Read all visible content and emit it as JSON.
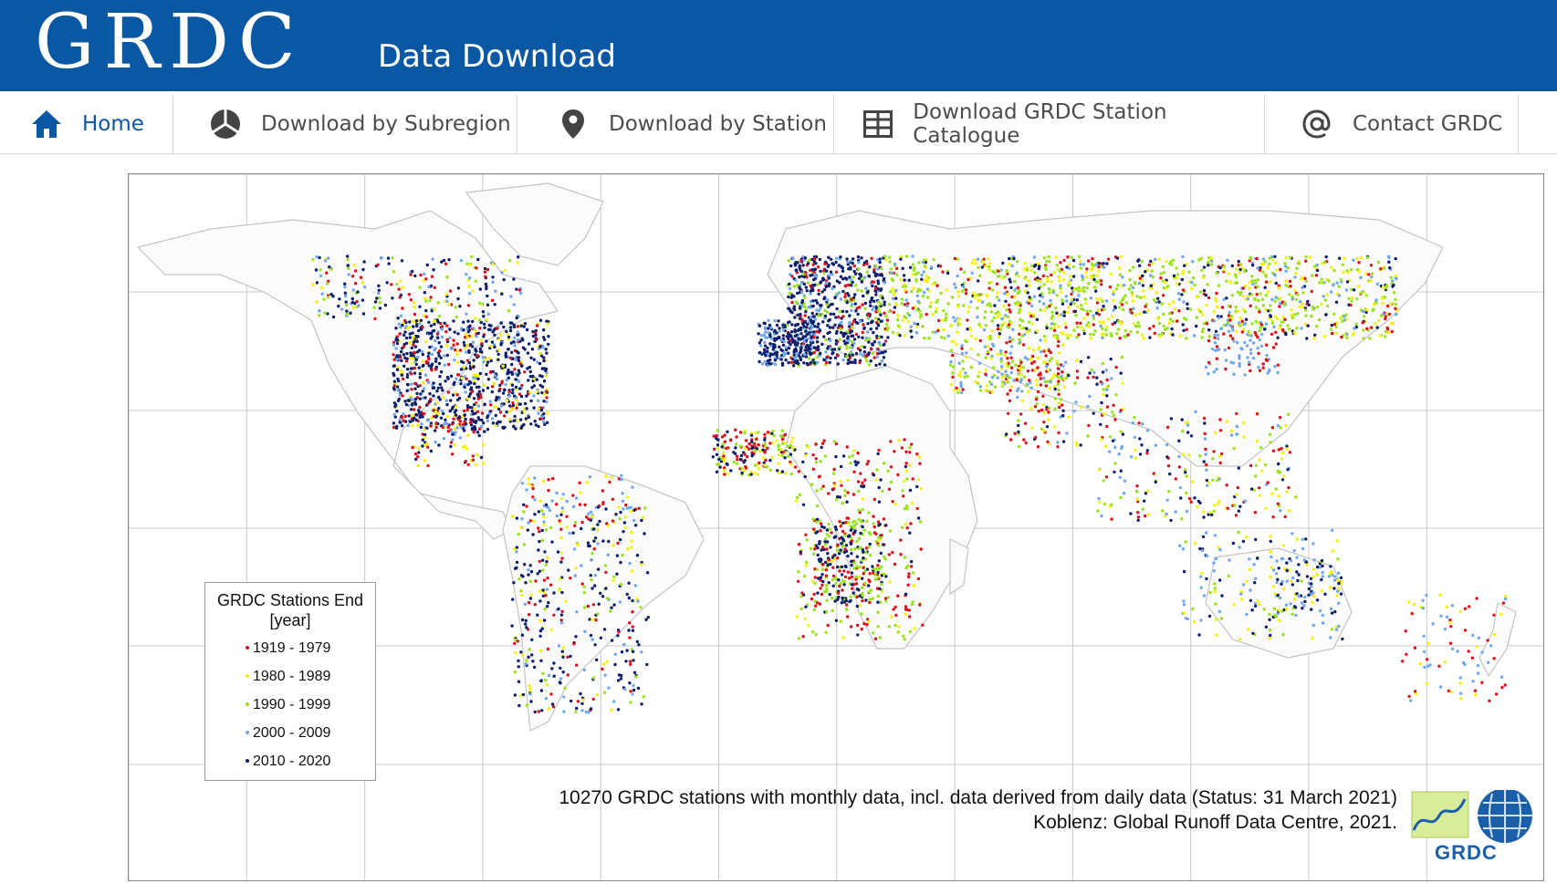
{
  "header": {
    "logo_text": "GRDC",
    "title": "Data Download",
    "background": "#0a57a4"
  },
  "nav": {
    "items": [
      {
        "label": "Home",
        "icon": "home-icon",
        "active": true
      },
      {
        "label": "Download by Subregion",
        "icon": "globe-icon",
        "active": false
      },
      {
        "label": "Download by Station",
        "icon": "map-pin-icon",
        "active": false
      },
      {
        "label": "Download GRDC Station Catalogue",
        "icon": "grid-icon",
        "active": false
      },
      {
        "label": "Contact GRDC",
        "icon": "at-sign-icon",
        "active": false
      }
    ]
  },
  "map": {
    "legend": {
      "title_line1": "GRDC Stations End",
      "title_line2": "[year]",
      "entries": [
        {
          "label": "1919 - 1979",
          "color": "#e0101a"
        },
        {
          "label": "1980 - 1989",
          "color": "#f6f20a"
        },
        {
          "label": "1990 - 1999",
          "color": "#9ae41a"
        },
        {
          "label": "2000 - 2009",
          "color": "#6fa8ee"
        },
        {
          "label": "2010 - 2020",
          "color": "#0e1f6b"
        }
      ]
    },
    "caption_line1": "10270 GRDC stations with monthly data, incl. data derived from daily data (Status: 31 March 2021)",
    "caption_line2": "Koblenz: Global Runoff Data Centre, 2021.",
    "badge_text": "GRDC"
  }
}
